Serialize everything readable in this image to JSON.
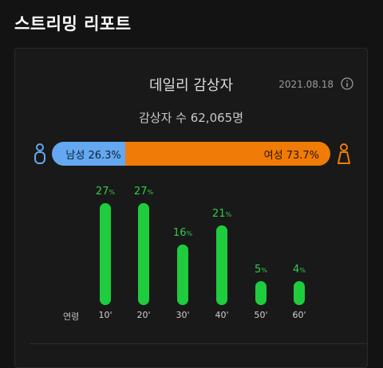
{
  "page_title": "스트리밍 리포트",
  "card": {
    "title": "데일리 감상자",
    "date": "2021.08.18",
    "viewers_text": "감상자 수 62,065명"
  },
  "gender": {
    "male_label": "남성 26.3%",
    "male_fraction": 0.263,
    "female_label": "여성 73.7%",
    "female_fraction": 0.737,
    "male_color": "#63a8f0",
    "female_color": "#f07b06",
    "icons": [
      "male-person-icon",
      "female-person-icon"
    ]
  },
  "age_axis_label": "연령",
  "chart_data": {
    "type": "bar",
    "categories": [
      "10'",
      "20'",
      "30'",
      "40'",
      "50'",
      "60'"
    ],
    "values": [
      27,
      27,
      16,
      21,
      5,
      4
    ],
    "labels": [
      "27",
      "27",
      "16",
      "21",
      "5",
      "4"
    ],
    "unit": "%",
    "bar_color": "#1fcc3d"
  }
}
